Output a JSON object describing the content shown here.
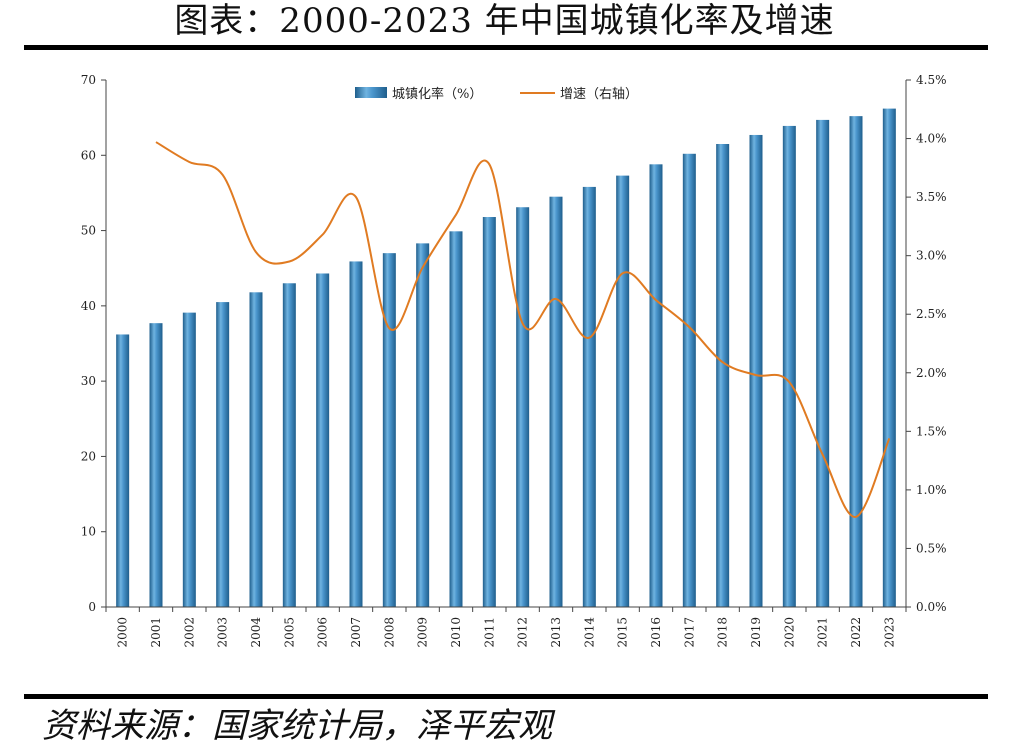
{
  "header": {
    "title": "图表：2000-2023 年中国城镇化率及增速"
  },
  "footer": {
    "source": "资料来源：国家统计局，泽平宏观"
  },
  "colors": {
    "bar": "#3a87c0",
    "bar_dark": "#1f5e8c",
    "line": "#e07b22"
  },
  "chart_data": {
    "type": "bar",
    "categories": [
      "2000",
      "2001",
      "2002",
      "2003",
      "2004",
      "2005",
      "2006",
      "2007",
      "2008",
      "2009",
      "2010",
      "2011",
      "2012",
      "2013",
      "2014",
      "2015",
      "2016",
      "2017",
      "2018",
      "2019",
      "2020",
      "2021",
      "2022",
      "2023"
    ],
    "series": [
      {
        "name": "城镇化率（%）",
        "type": "bar",
        "axis": "left",
        "values": [
          36.2,
          37.7,
          39.1,
          40.5,
          41.8,
          43.0,
          44.3,
          45.9,
          47.0,
          48.3,
          49.9,
          51.8,
          53.1,
          54.5,
          55.8,
          57.3,
          58.8,
          60.2,
          61.5,
          62.7,
          63.9,
          64.7,
          65.2,
          66.2
        ]
      },
      {
        "name": "增速（右轴）",
        "type": "line",
        "axis": "right",
        "values": [
          null,
          3.97,
          3.8,
          3.69,
          3.03,
          2.95,
          3.18,
          3.5,
          2.38,
          2.9,
          3.35,
          3.78,
          2.42,
          2.63,
          2.3,
          2.85,
          2.62,
          2.39,
          2.09,
          1.98,
          1.92,
          1.3,
          0.77,
          1.44
        ]
      }
    ],
    "left_axis": {
      "min": 0,
      "max": 70,
      "step": 10,
      "tick_labels": [
        "0",
        "10",
        "20",
        "30",
        "40",
        "50",
        "60",
        "70"
      ]
    },
    "right_axis": {
      "min": 0,
      "max": 4.5,
      "step": 0.5,
      "tick_labels": [
        "0.0%",
        "0.5%",
        "1.0%",
        "1.5%",
        "2.0%",
        "2.5%",
        "3.0%",
        "3.5%",
        "4.0%",
        "4.5%"
      ]
    },
    "legend": {
      "position": "top-center",
      "entries": [
        "城镇化率（%）",
        "增速（右轴）"
      ]
    },
    "grid": false
  }
}
